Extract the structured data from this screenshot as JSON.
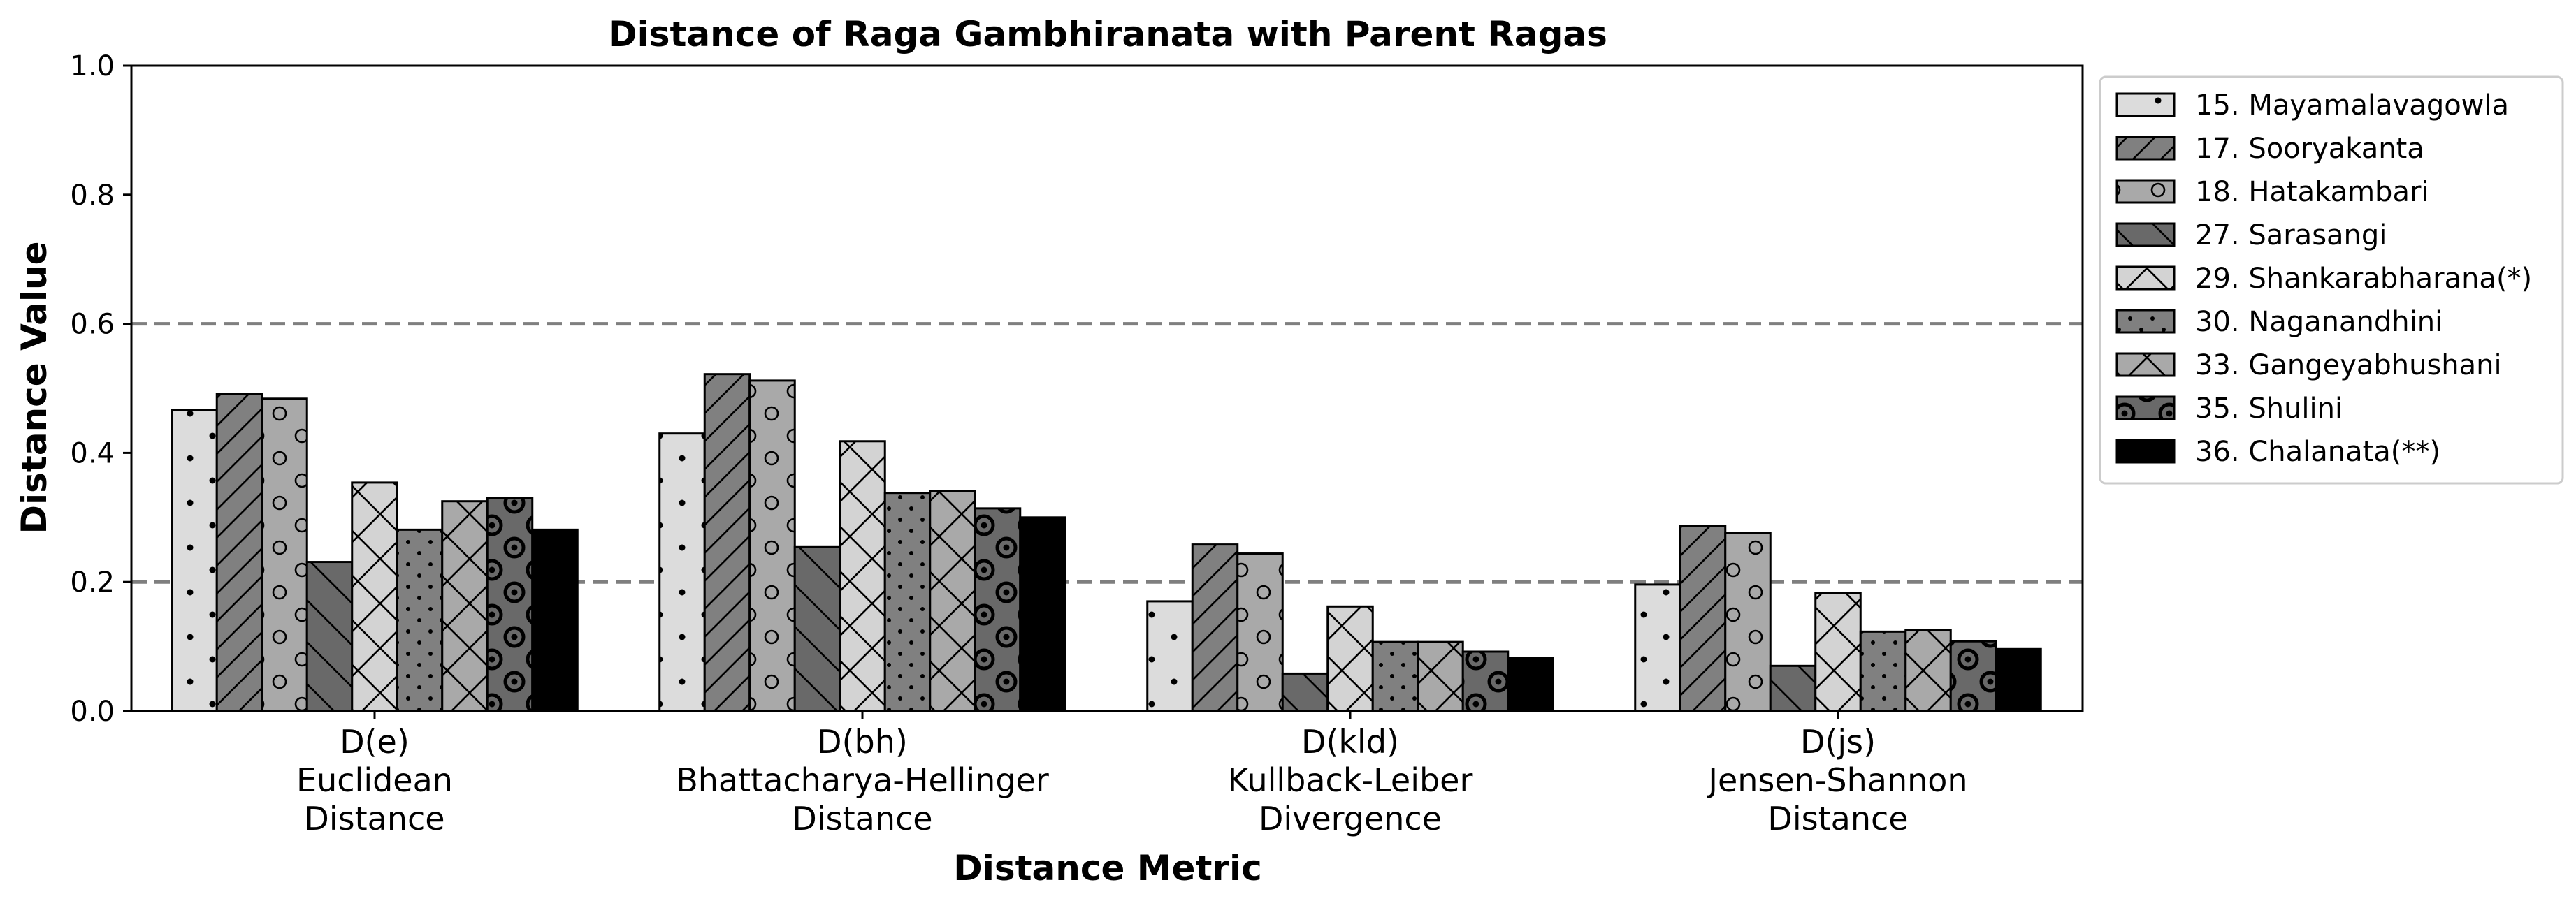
{
  "chart_data": {
    "type": "bar",
    "title": "Distance of Raga Gambhiranata with Parent Ragas",
    "xlabel": "Distance Metric",
    "ylabel": "Distance Value",
    "ylim": [
      0,
      1.0
    ],
    "yticks": [
      "0.0",
      "0.2",
      "0.4",
      "0.6",
      "0.8",
      "1.0"
    ],
    "reference_lines": [
      0.2,
      0.6
    ],
    "legend_position": "outside-right-top",
    "categories": [
      {
        "short": "D(e)",
        "line1": "Euclidean",
        "line2": "Distance"
      },
      {
        "short": "D(bh)",
        "line1": "Bhattacharya-Hellinger",
        "line2": "Distance"
      },
      {
        "short": "D(kld)",
        "line1": "Kullback-Leiber",
        "line2": "Divergence"
      },
      {
        "short": "D(js)",
        "line1": "Jensen-Shannon",
        "line2": "Distance"
      }
    ],
    "series": [
      {
        "name": "15. Mayamalavagowla",
        "fill": "#dcdcdc",
        "pattern": "dots-sparse",
        "values": [
          0.466,
          0.43,
          0.17,
          0.196
        ]
      },
      {
        "name": "17. Sooryakanta",
        "fill": "#808080",
        "pattern": "diag-forward",
        "values": [
          0.491,
          0.522,
          0.258,
          0.287
        ]
      },
      {
        "name": "18. Hatakambari",
        "fill": "#a9a9a9",
        "pattern": "circles",
        "values": [
          0.484,
          0.512,
          0.244,
          0.276
        ]
      },
      {
        "name": "27. Sarasangi",
        "fill": "#696969",
        "pattern": "diag-back",
        "values": [
          0.231,
          0.254,
          0.058,
          0.07
        ]
      },
      {
        "name": "29. Shankarabharana(*)",
        "fill": "#d3d3d3",
        "pattern": "cross-x",
        "values": [
          0.354,
          0.418,
          0.162,
          0.183
        ]
      },
      {
        "name": "30. Naganandhini",
        "fill": "#808080",
        "pattern": "dots-dense",
        "values": [
          0.281,
          0.338,
          0.107,
          0.123
        ]
      },
      {
        "name": "33. Gangeyabhushani",
        "fill": "#a9a9a9",
        "pattern": "cross-x",
        "values": [
          0.325,
          0.341,
          0.107,
          0.125
        ]
      },
      {
        "name": "35. Shulini",
        "fill": "#696969",
        "pattern": "target",
        "values": [
          0.33,
          0.314,
          0.092,
          0.108
        ]
      },
      {
        "name": "36. Chalanata(**)",
        "fill": "#000000",
        "pattern": "none",
        "values": [
          0.281,
          0.3,
          0.082,
          0.096
        ]
      }
    ]
  }
}
